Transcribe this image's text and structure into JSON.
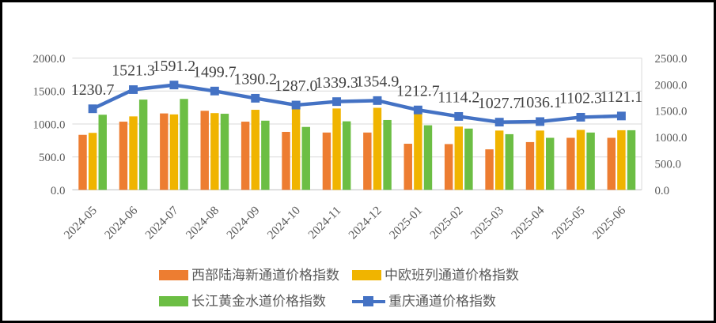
{
  "chart_data": {
    "type": "combo: grouped-bar + line",
    "title": "",
    "xlabel": "",
    "ylabel": "",
    "grid": true,
    "legend_position": "bottom",
    "categories": [
      "2024-05",
      "2024-06",
      "2024-07",
      "2024-08",
      "2024-09",
      "2024-10",
      "2024-11",
      "2024-12",
      "2025-01",
      "2025-02",
      "2025-03",
      "2025-04",
      "2025-05",
      "2025-06"
    ],
    "bar_series": [
      {
        "name": "西部陆海新通道价格指数",
        "color": "#ED7D31",
        "values": [
          835,
          1035,
          1160,
          1200,
          1035,
          880,
          870,
          870,
          700,
          695,
          615,
          725,
          790,
          790
        ]
      },
      {
        "name": "中欧班列通道价格指数",
        "color": "#F0B400",
        "values": [
          865,
          1115,
          1145,
          1165,
          1215,
          1225,
          1235,
          1245,
          1215,
          960,
          900,
          900,
          910,
          905
        ]
      },
      {
        "name": "长江黄金水道价格指数",
        "color": "#6CBE44",
        "values": [
          1140,
          1370,
          1380,
          1155,
          1050,
          955,
          1040,
          1060,
          980,
          930,
          845,
          790,
          870,
          905
        ]
      }
    ],
    "line_series": {
      "name": "重庆通道价格指数",
      "color": "#4472C4",
      "marker": "square",
      "values": [
        1230.7,
        1521.3,
        1591.2,
        1499.7,
        1390.2,
        1287.0,
        1339.3,
        1354.9,
        1212.7,
        1114.2,
        1027.7,
        1036.1,
        1102.3,
        1121.1
      ]
    },
    "left_axis": {
      "min": 0,
      "max": 2000,
      "step": 500,
      "tick_labels": [
        "2000.0",
        "1500.0",
        "1000.0",
        "500.0",
        "0.0"
      ]
    },
    "right_axis": {
      "min": 0,
      "max": 2500,
      "step": 500,
      "tick_labels": [
        "2500.0",
        "2000.0",
        "1500.0",
        "1000.0",
        "500.0",
        "0.0"
      ]
    },
    "colors": {
      "grid": "#D9D9D9",
      "axis_line": "#BFBFBF",
      "axis_text": "#595959",
      "data_label_text": "#404040"
    }
  }
}
